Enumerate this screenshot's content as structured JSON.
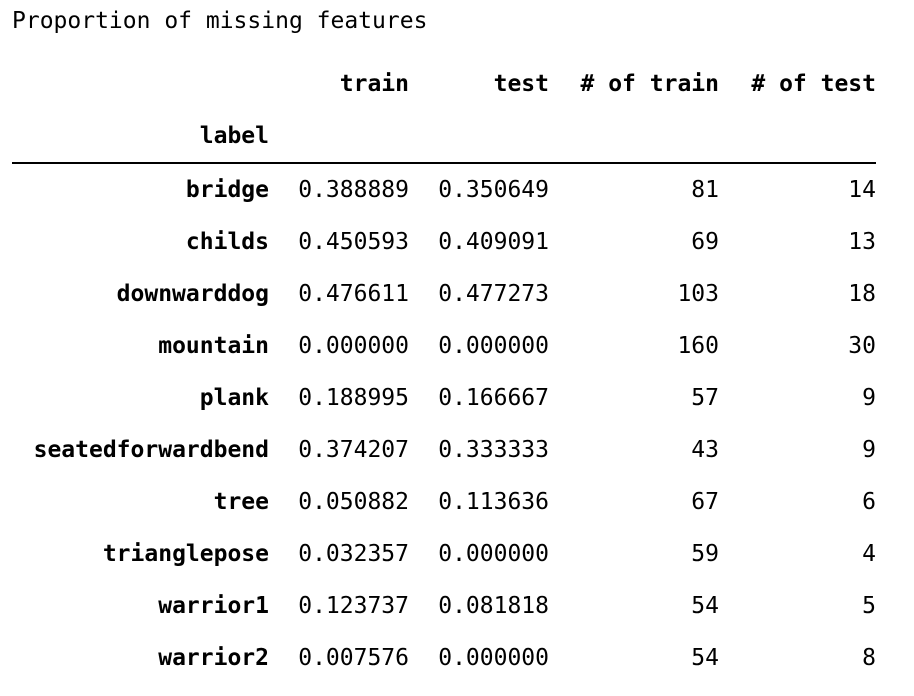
{
  "caption": "Proportion of missing features",
  "table": {
    "columns": [
      "train",
      "test",
      "# of train",
      "# of test"
    ],
    "index_name": "label",
    "rows": [
      {
        "label": "bridge",
        "train": "0.388889",
        "test": "0.350649",
        "n_train": "81",
        "n_test": "14"
      },
      {
        "label": "childs",
        "train": "0.450593",
        "test": "0.409091",
        "n_train": "69",
        "n_test": "13"
      },
      {
        "label": "downwarddog",
        "train": "0.476611",
        "test": "0.477273",
        "n_train": "103",
        "n_test": "18"
      },
      {
        "label": "mountain",
        "train": "0.000000",
        "test": "0.000000",
        "n_train": "160",
        "n_test": "30"
      },
      {
        "label": "plank",
        "train": "0.188995",
        "test": "0.166667",
        "n_train": "57",
        "n_test": "9"
      },
      {
        "label": "seatedforwardbend",
        "train": "0.374207",
        "test": "0.333333",
        "n_train": "43",
        "n_test": "9"
      },
      {
        "label": "tree",
        "train": "0.050882",
        "test": "0.113636",
        "n_train": "67",
        "n_test": "6"
      },
      {
        "label": "trianglepose",
        "train": "0.032357",
        "test": "0.000000",
        "n_train": "59",
        "n_test": "4"
      },
      {
        "label": "warrior1",
        "train": "0.123737",
        "test": "0.081818",
        "n_train": "54",
        "n_test": "5"
      },
      {
        "label": "warrior2",
        "train": "0.007576",
        "test": "0.000000",
        "n_train": "54",
        "n_test": "8"
      }
    ]
  }
}
